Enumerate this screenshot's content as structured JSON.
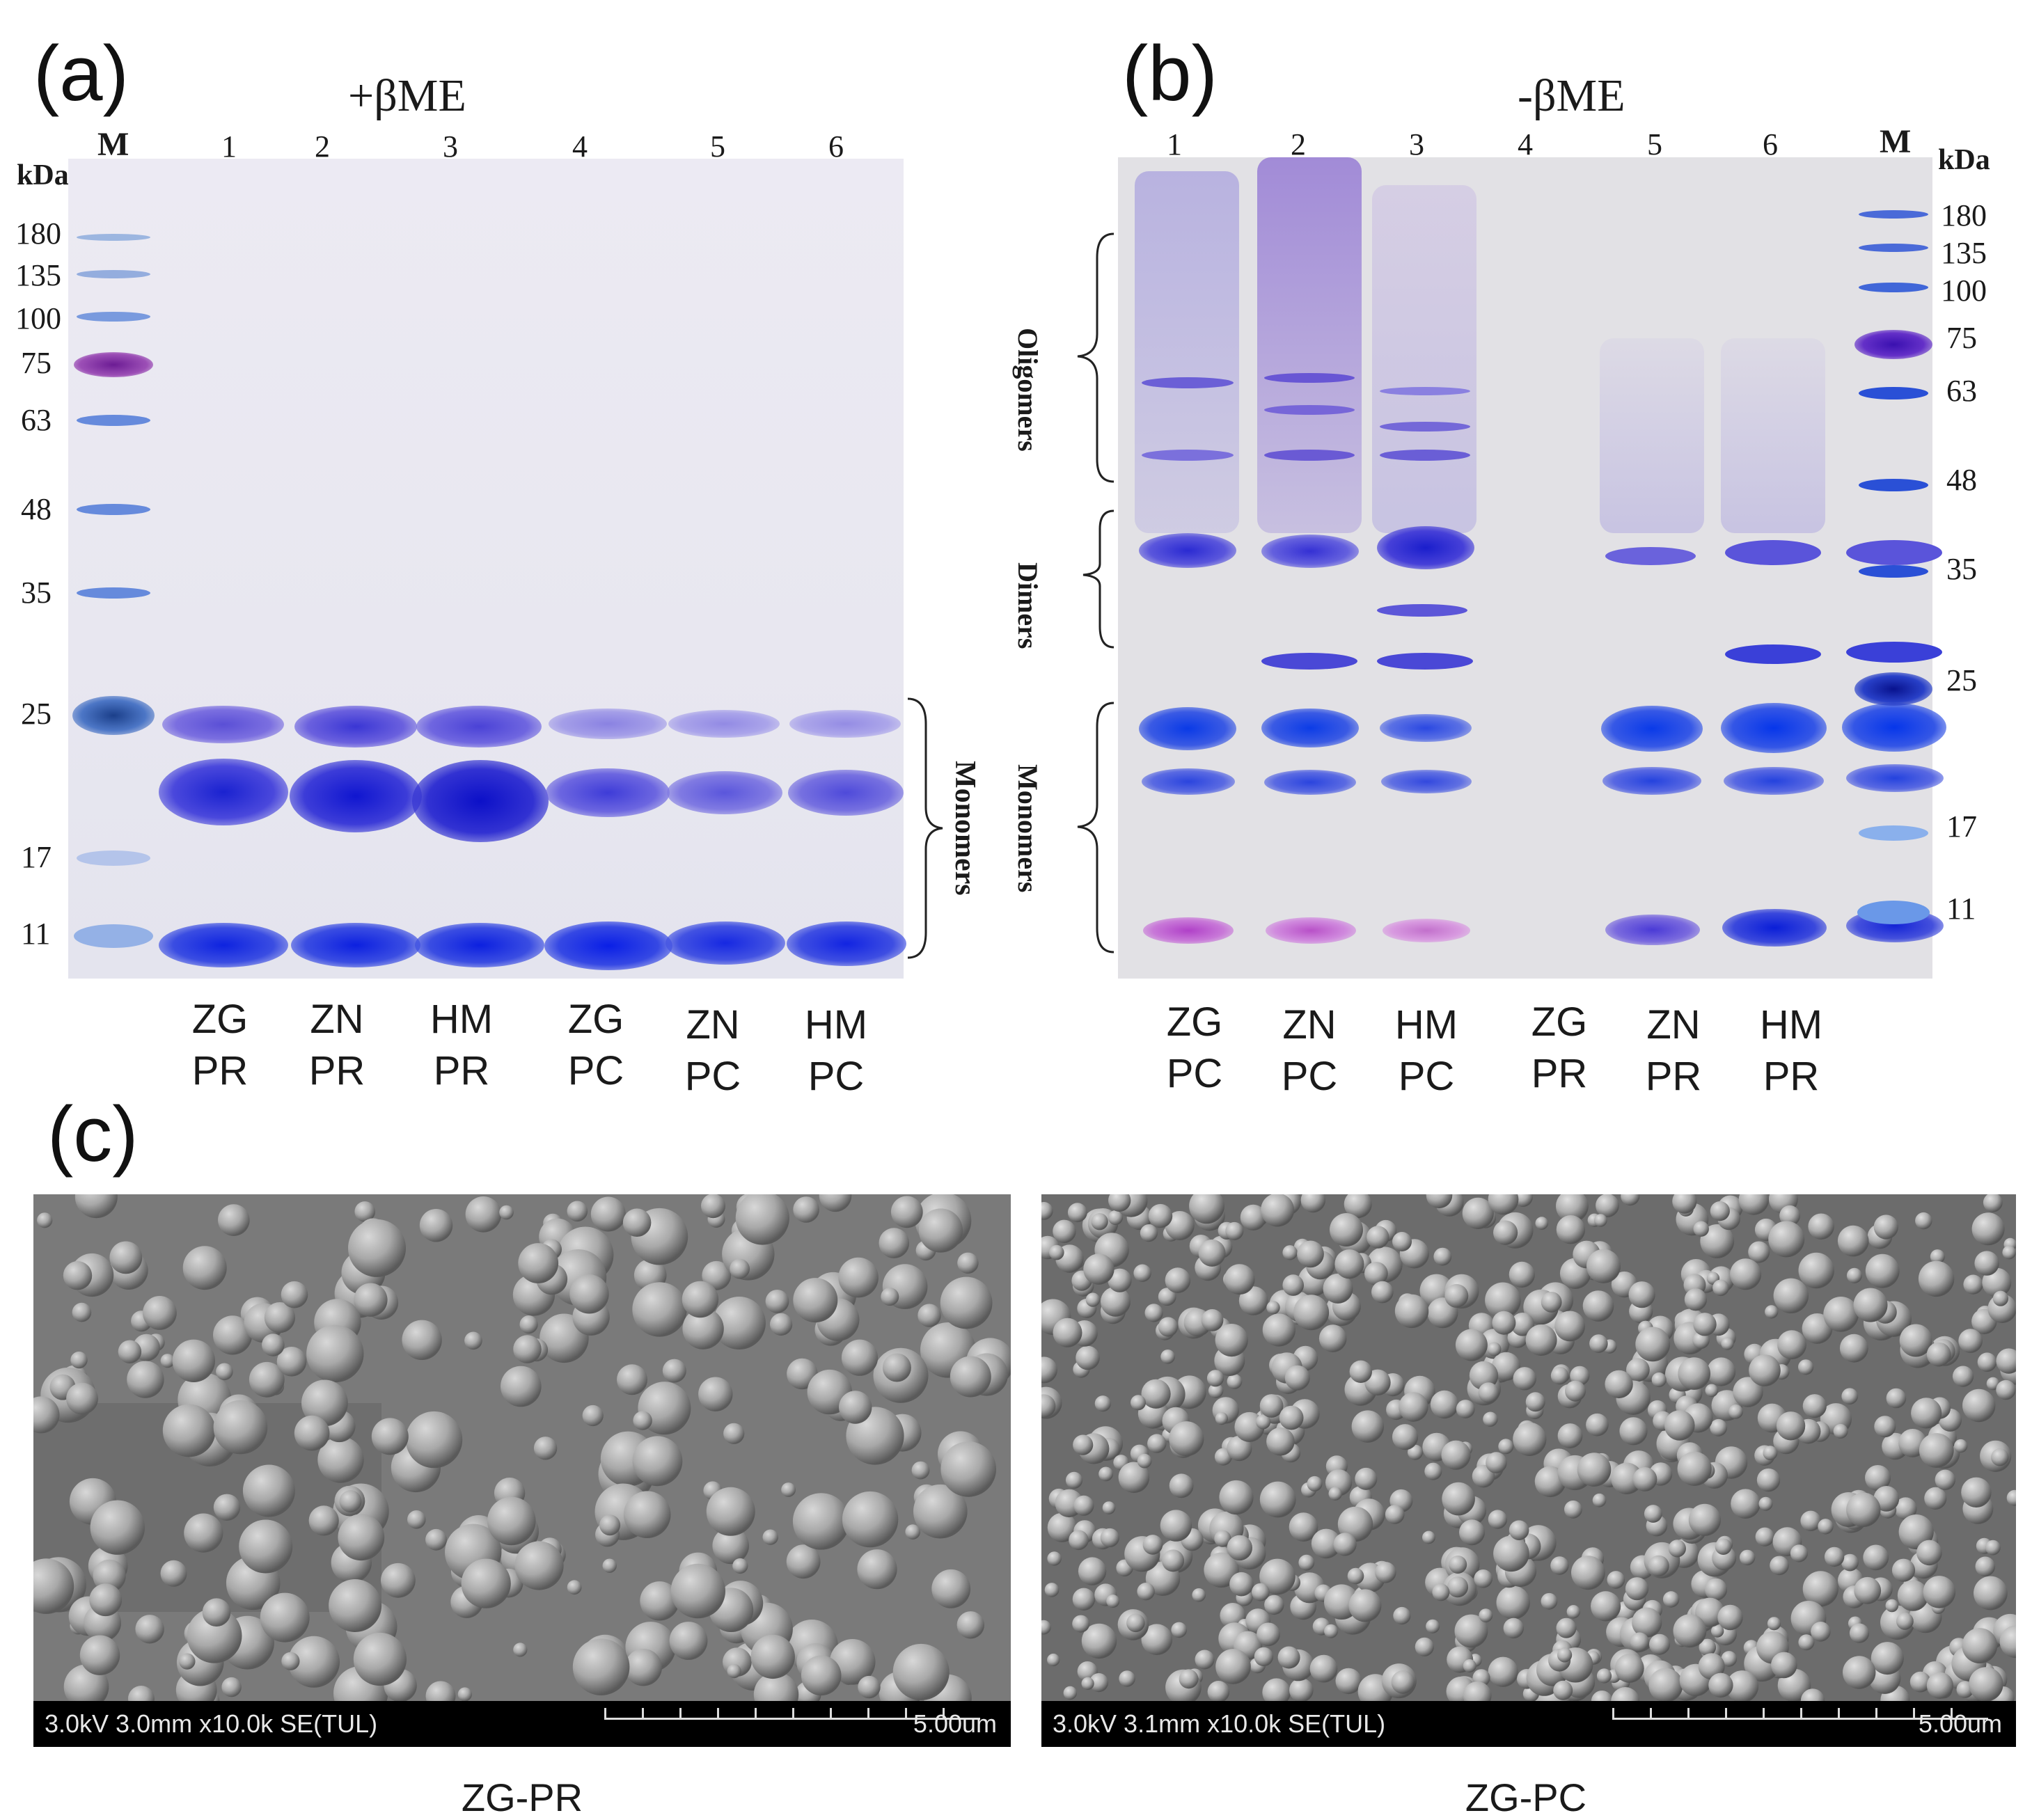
{
  "panel_a": {
    "letter": "(a)",
    "condition": "+βME",
    "marker_label": "M",
    "unit": "kDa",
    "lane_numbers": [
      "1",
      "2",
      "3",
      "4",
      "5",
      "6"
    ],
    "marker_kda": [
      "180",
      "135",
      "100",
      "75",
      "63",
      "48",
      "35",
      "25",
      "17",
      "11"
    ],
    "group_label": "Monomers",
    "samples": [
      {
        "line1": "ZG",
        "line2": "PR"
      },
      {
        "line1": "ZN",
        "line2": "PR"
      },
      {
        "line1": "HM",
        "line2": "PR"
      },
      {
        "line1": "ZG",
        "line2": "PC"
      },
      {
        "line1": "ZN",
        "line2": "PC"
      },
      {
        "line1": "HM",
        "line2": "PC"
      }
    ]
  },
  "panel_b": {
    "letter": "(b)",
    "condition": "-βME",
    "marker_label": "M",
    "unit": "kDa",
    "lane_numbers": [
      "1",
      "2",
      "3",
      "4",
      "5",
      "6"
    ],
    "marker_kda": [
      "180",
      "135",
      "100",
      "75",
      "63",
      "48",
      "35",
      "25",
      "17",
      "11"
    ],
    "group_labels": [
      "Oligomers",
      "Dimers",
      "Monomers"
    ],
    "samples": [
      {
        "line1": "ZG",
        "line2": "PC"
      },
      {
        "line1": "ZN",
        "line2": "PC"
      },
      {
        "line1": "HM",
        "line2": "PC"
      },
      {
        "line1": "ZG",
        "line2": "PR"
      },
      {
        "line1": "ZN",
        "line2": "PR"
      },
      {
        "line1": "HM",
        "line2": "PR"
      }
    ]
  },
  "panel_c": {
    "letter": "(c)",
    "images": [
      {
        "info": "3.0kV 3.0mm x10.0k SE(TUL)",
        "scale": "5.00um",
        "caption": "ZG-PR"
      },
      {
        "info": "3.0kV 3.1mm x10.0k SE(TUL)",
        "scale": "5.00um",
        "caption": "ZG-PC"
      }
    ]
  },
  "colors": {
    "gel_bg": "#e9e8f1",
    "gel_b_bg": "#e2e1e6",
    "band_blue": "#1f2fd8",
    "band_violet": "#6a5cd6",
    "marker_purple": "#7b1c9a",
    "sem_gray": "#7d7d7d"
  }
}
